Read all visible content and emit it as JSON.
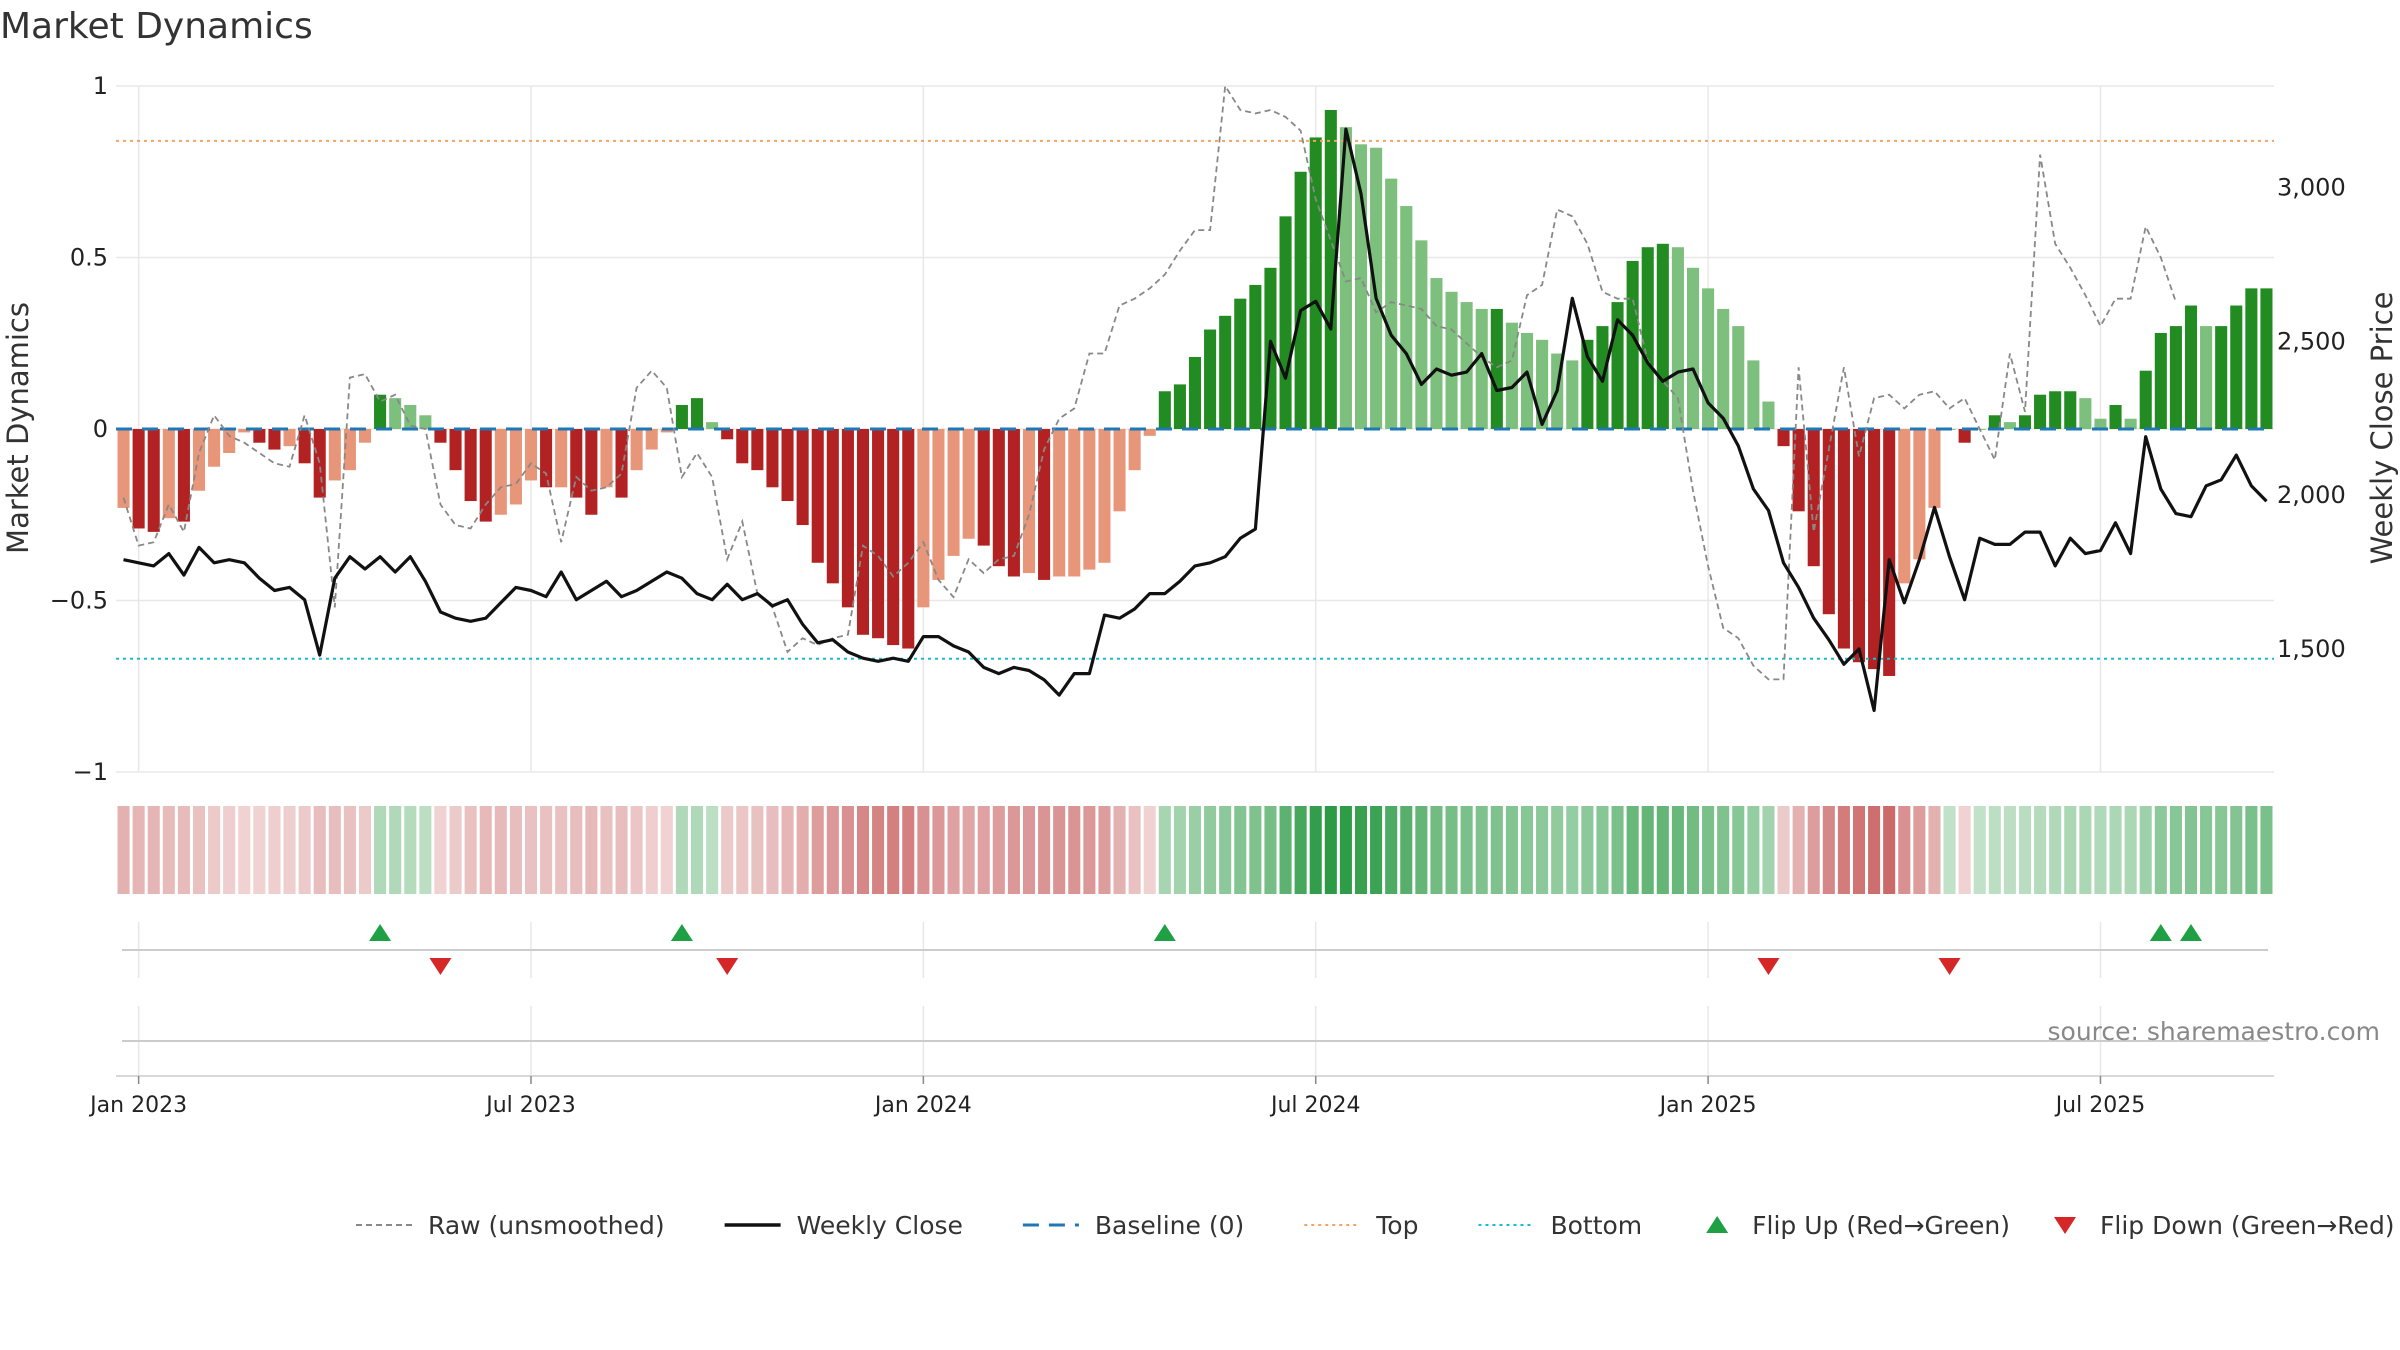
{
  "chart_data": {
    "type": "bar",
    "title": "Market Dynamics",
    "ylabel_left": "Market Dynamics",
    "ylabel_right": "Weekly Close Price",
    "ylim_left": [
      -1,
      1
    ],
    "ylim_right": [
      1100,
      3330
    ],
    "y_ticks_left": [
      {
        "v": 1,
        "label": "1"
      },
      {
        "v": 0.5,
        "label": "0.5"
      },
      {
        "v": 0,
        "label": "0"
      },
      {
        "v": -0.5,
        "label": "−0.5"
      },
      {
        "v": -1,
        "label": "−1"
      }
    ],
    "y_ticks_right": [
      {
        "v": 3000,
        "label": "3,000"
      },
      {
        "v": 2500,
        "label": "2,500"
      },
      {
        "v": 2000,
        "label": "2,000"
      },
      {
        "v": 1500,
        "label": "1,500"
      }
    ],
    "x_ticks": [
      "Jan 2023",
      "Jul 2023",
      "Jan 2024",
      "Jul 2024",
      "Jan 2025",
      "Jul 2025"
    ],
    "x_tick_weeks": [
      1,
      27,
      53,
      79,
      105,
      131
    ],
    "top_line": 0.84,
    "bottom_line": -0.67,
    "colors": {
      "green_dark": "#228b22",
      "green_light": "#7dbf7d",
      "red_dark": "#b22222",
      "red_light": "#e8967a",
      "weekly_close": "#111111",
      "raw": "#888888",
      "baseline": "#1f77b4",
      "top": "#f4a460",
      "bottom": "#17becf",
      "flip_up": "#1fa044",
      "flip_down": "#d62728"
    },
    "smoothed": [
      -0.23,
      -0.29,
      -0.3,
      -0.26,
      -0.27,
      -0.18,
      -0.11,
      -0.07,
      -0.01,
      -0.04,
      -0.06,
      -0.05,
      -0.1,
      -0.2,
      -0.15,
      -0.12,
      -0.04,
      0.1,
      0.09,
      0.07,
      0.04,
      -0.04,
      -0.12,
      -0.21,
      -0.27,
      -0.25,
      -0.22,
      -0.15,
      -0.17,
      -0.17,
      -0.2,
      -0.25,
      -0.17,
      -0.2,
      -0.12,
      -0.06,
      -0.01,
      0.07,
      0.09,
      0.02,
      -0.03,
      -0.1,
      -0.12,
      -0.17,
      -0.21,
      -0.28,
      -0.39,
      -0.45,
      -0.52,
      -0.6,
      -0.61,
      -0.63,
      -0.64,
      -0.52,
      -0.44,
      -0.37,
      -0.32,
      -0.34,
      -0.4,
      -0.43,
      -0.42,
      -0.44,
      -0.43,
      -0.43,
      -0.41,
      -0.39,
      -0.24,
      -0.12,
      -0.02,
      0.11,
      0.13,
      0.21,
      0.29,
      0.33,
      0.38,
      0.42,
      0.47,
      0.62,
      0.75,
      0.85,
      0.93,
      0.88,
      0.83,
      0.82,
      0.73,
      0.65,
      0.55,
      0.44,
      0.4,
      0.37,
      0.35,
      0.35,
      0.31,
      0.28,
      0.26,
      0.22,
      0.2,
      0.26,
      0.3,
      0.37,
      0.49,
      0.53,
      0.54,
      0.53,
      0.47,
      0.41,
      0.35,
      0.3,
      0.2,
      0.08,
      -0.05,
      -0.24,
      -0.4,
      -0.54,
      -0.64,
      -0.68,
      -0.7,
      -0.72,
      -0.45,
      -0.38,
      -0.23,
      0.0,
      -0.04,
      0.0,
      0.04,
      0.02,
      0.04,
      0.1,
      0.11,
      0.11,
      0.09,
      0.03,
      0.07,
      0.03,
      0.17,
      0.28,
      0.3,
      0.36,
      0.3,
      0.3,
      0.36,
      0.41,
      0.41
    ],
    "raw": [
      -0.2,
      -0.34,
      -0.33,
      -0.22,
      -0.3,
      -0.07,
      0.04,
      -0.02,
      -0.04,
      -0.07,
      -0.1,
      -0.11,
      0.04,
      -0.1,
      -0.52,
      0.15,
      0.16,
      0.08,
      0.1,
      0.01,
      0.0,
      -0.22,
      -0.28,
      -0.29,
      -0.22,
      -0.17,
      -0.16,
      -0.1,
      -0.13,
      -0.33,
      -0.14,
      -0.18,
      -0.17,
      -0.13,
      0.12,
      0.17,
      0.12,
      -0.14,
      -0.07,
      -0.14,
      -0.38,
      -0.27,
      -0.48,
      -0.52,
      -0.65,
      -0.61,
      -0.63,
      -0.61,
      -0.6,
      -0.34,
      -0.37,
      -0.43,
      -0.39,
      -0.33,
      -0.44,
      -0.49,
      -0.38,
      -0.42,
      -0.38,
      -0.37,
      -0.25,
      -0.06,
      0.03,
      0.06,
      0.22,
      0.22,
      0.36,
      0.38,
      0.41,
      0.45,
      0.52,
      0.58,
      0.58,
      1.0,
      0.93,
      0.92,
      0.93,
      0.91,
      0.87,
      0.67,
      0.55,
      0.43,
      0.44,
      0.34,
      0.37,
      0.36,
      0.35,
      0.3,
      0.29,
      0.25,
      0.21,
      0.18,
      0.2,
      0.39,
      0.42,
      0.64,
      0.62,
      0.54,
      0.4,
      0.38,
      0.38,
      0.2,
      0.14,
      0.09,
      -0.18,
      -0.4,
      -0.58,
      -0.61,
      -0.69,
      -0.73,
      -0.73,
      0.18,
      -0.3,
      -0.06,
      0.18,
      -0.08,
      0.09,
      0.1,
      0.06,
      0.1,
      0.11,
      0.06,
      0.09,
      0.0,
      -0.09,
      0.22,
      0.05,
      0.8,
      0.54,
      0.47,
      0.39,
      0.3,
      0.38,
      0.38,
      0.59,
      0.5,
      0.37
    ],
    "weekly_close": [
      1790,
      1780,
      1770,
      1810,
      1740,
      1830,
      1780,
      1790,
      1780,
      1730,
      1690,
      1700,
      1660,
      1480,
      1730,
      1800,
      1760,
      1800,
      1750,
      1800,
      1720,
      1620,
      1600,
      1590,
      1600,
      1650,
      1700,
      1690,
      1670,
      1750,
      1660,
      1690,
      1720,
      1670,
      1690,
      1720,
      1750,
      1730,
      1680,
      1660,
      1710,
      1660,
      1680,
      1640,
      1660,
      1580,
      1520,
      1530,
      1490,
      1470,
      1460,
      1470,
      1460,
      1540,
      1540,
      1510,
      1490,
      1440,
      1420,
      1440,
      1430,
      1400,
      1350,
      1420,
      1420,
      1610,
      1600,
      1630,
      1680,
      1680,
      1720,
      1770,
      1780,
      1800,
      1860,
      1890,
      2500,
      2380,
      2600,
      2630,
      2540,
      3190,
      2980,
      2640,
      2520,
      2460,
      2360,
      2410,
      2390,
      2400,
      2460,
      2340,
      2350,
      2400,
      2230,
      2340,
      2640,
      2450,
      2370,
      2570,
      2520,
      2430,
      2370,
      2400,
      2410,
      2300,
      2250,
      2160,
      2020,
      1950,
      1780,
      1700,
      1600,
      1530,
      1450,
      1500,
      1300,
      1790,
      1650,
      1790,
      1960,
      1800,
      1660,
      1860,
      1840,
      1840,
      1880,
      1880,
      1770,
      1860,
      1810,
      1820,
      1910,
      1810,
      2190,
      2020,
      1940,
      1930,
      2030,
      2050,
      2130,
      2030,
      1980
    ],
    "zone_bins": [
      0.2,
      0.18,
      0.18,
      0.15,
      0.15,
      0.12,
      0.08,
      0.06,
      0.04,
      0.04,
      0.06,
      0.06,
      0.08,
      0.14,
      0.14,
      0.12,
      0.08,
      0.18,
      0.18,
      0.16,
      0.12,
      0.04,
      0.08,
      0.12,
      0.16,
      0.16,
      0.14,
      0.12,
      0.12,
      0.12,
      0.14,
      0.16,
      0.12,
      0.14,
      0.1,
      0.06,
      0.04,
      0.18,
      0.18,
      0.12,
      0.08,
      0.1,
      0.12,
      0.14,
      0.18,
      0.22,
      0.3,
      0.32,
      0.36,
      0.4,
      0.42,
      0.44,
      0.44,
      0.36,
      0.32,
      0.28,
      0.26,
      0.28,
      0.3,
      0.32,
      0.32,
      0.34,
      0.34,
      0.34,
      0.32,
      0.3,
      0.2,
      0.12,
      0.04,
      0.22,
      0.24,
      0.28,
      0.32,
      0.34,
      0.38,
      0.4,
      0.44,
      0.55,
      0.65,
      0.75,
      0.8,
      0.76,
      0.72,
      0.7,
      0.62,
      0.58,
      0.52,
      0.46,
      0.44,
      0.42,
      0.4,
      0.4,
      0.38,
      0.36,
      0.34,
      0.32,
      0.3,
      0.34,
      0.36,
      0.42,
      0.5,
      0.52,
      0.52,
      0.5,
      0.46,
      0.42,
      0.4,
      0.36,
      0.3,
      0.24,
      0.08,
      0.2,
      0.3,
      0.4,
      0.46,
      0.5,
      0.52,
      0.55,
      0.36,
      0.3,
      0.2,
      0.1,
      0.04,
      0.1,
      0.12,
      0.12,
      0.14,
      0.16,
      0.18,
      0.2,
      0.2,
      0.18,
      0.2,
      0.2,
      0.26,
      0.34,
      0.36,
      0.38,
      0.36,
      0.36,
      0.38,
      0.42,
      0.42
    ],
    "flip_up_weeks": [
      17,
      37,
      69,
      135,
      137
    ],
    "flip_down_weeks": [
      21,
      40,
      109,
      121
    ],
    "legend": [
      {
        "label": "Raw (unsmoothed)",
        "style": "dashed-gray"
      },
      {
        "label": "Weekly Close",
        "style": "solid-black"
      },
      {
        "label": "Baseline (0)",
        "style": "dashed-blue"
      },
      {
        "label": "Top",
        "style": "dotted-orange"
      },
      {
        "label": "Bottom",
        "style": "dotted-cyan"
      },
      {
        "label": "Flip Up (Red→Green)",
        "style": "triangle-up"
      },
      {
        "label": "Flip Down (Green→Red)",
        "style": "triangle-down"
      }
    ],
    "legend_placement": "bottom-center",
    "grid": true,
    "source": "source: sharemaestro.com"
  }
}
